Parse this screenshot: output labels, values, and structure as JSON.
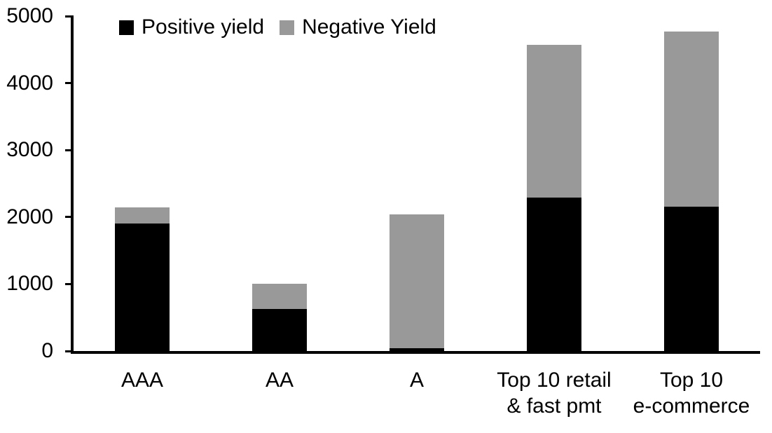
{
  "chart_data": {
    "type": "bar",
    "stacked": true,
    "title": "",
    "xlabel": "",
    "ylabel": "",
    "categories": [
      "AAA",
      "AA",
      "A",
      "Top 10 retail\n& fast pmt",
      "Top 10\ne-commerce"
    ],
    "series": [
      {
        "name": "Positive yield",
        "color": "#000000",
        "values": [
          1900,
          625,
          45,
          2290,
          2160
        ]
      },
      {
        "name": "Negative Yield",
        "color": "#999999",
        "values": [
          240,
          380,
          1995,
          2280,
          2610
        ]
      }
    ],
    "totals": [
      2140,
      1005,
      2040,
      4570,
      4770
    ],
    "ylim": [
      0,
      5000
    ],
    "yticks": [
      0,
      1000,
      2000,
      3000,
      4000,
      5000
    ],
    "legend_position": "top",
    "grid": false,
    "background_color": "#ffffff",
    "axis_color": "#000000"
  }
}
